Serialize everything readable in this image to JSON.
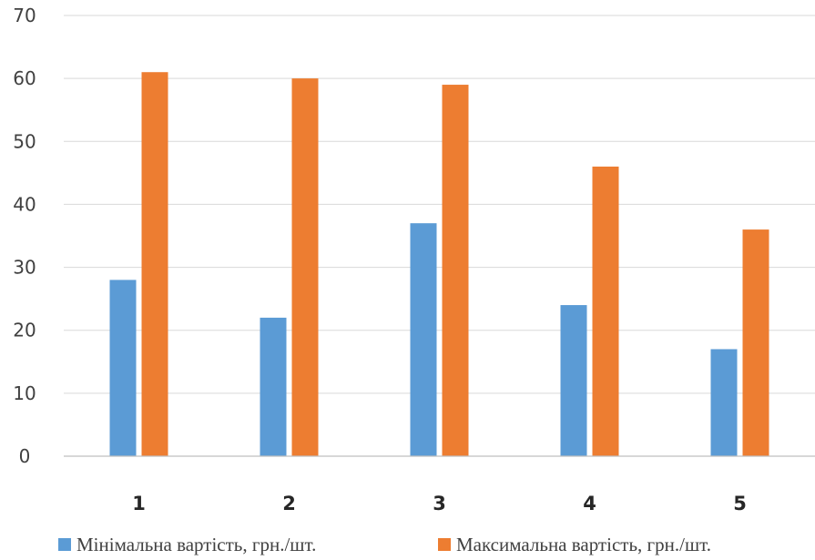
{
  "chart_data": {
    "type": "bar",
    "title": "",
    "xlabel": "",
    "ylabel": "",
    "categories": [
      "1",
      "2",
      "3",
      "4",
      "5"
    ],
    "series": [
      {
        "name": "Мінімальна вартість, грн./шт.",
        "values": [
          28,
          22,
          37,
          24,
          17
        ],
        "color": "#5b9bd5"
      },
      {
        "name": "Максимальна вартість, грн./шт.",
        "values": [
          61,
          60,
          59,
          46,
          36
        ],
        "color": "#ed7d31"
      }
    ],
    "ylim": [
      0,
      70
    ],
    "yticks": [
      "0",
      "10",
      "20",
      "30",
      "40",
      "50",
      "60",
      "70"
    ],
    "grid": true,
    "legend_position": "bottom"
  }
}
